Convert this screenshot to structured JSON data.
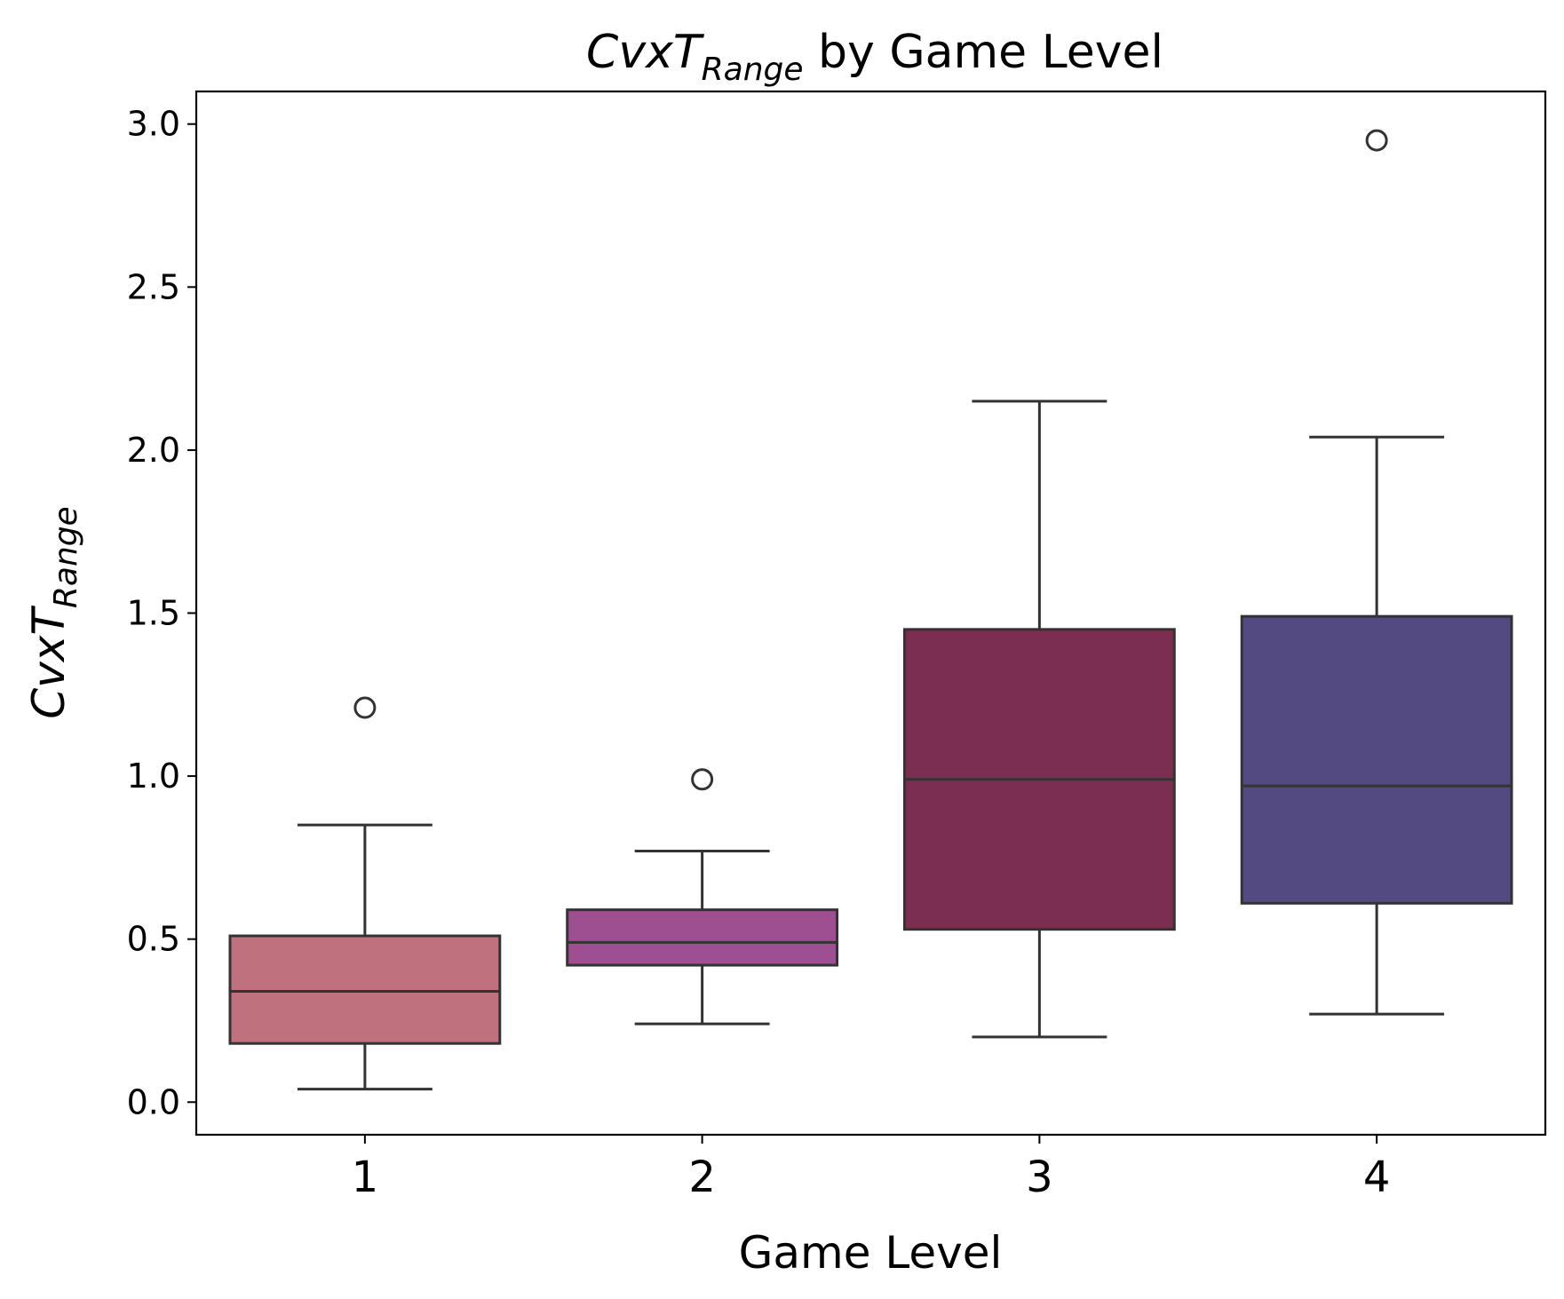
{
  "chart_data": {
    "type": "box",
    "title": {
      "base": "CvxT",
      "subscript": "Range",
      "suffix": " by Game Level"
    },
    "xlabel": "Game Level",
    "ylabel": {
      "base": "CvxT",
      "subscript": "Range"
    },
    "ylim": [
      -0.1,
      3.1
    ],
    "yticks": [
      0.0,
      0.5,
      1.0,
      1.5,
      2.0,
      2.5,
      3.0
    ],
    "ytick_labels": [
      "0.0",
      "0.5",
      "1.0",
      "1.5",
      "2.0",
      "2.5",
      "3.0"
    ],
    "categories": [
      "1",
      "2",
      "3",
      "4"
    ],
    "grid": false,
    "series": [
      {
        "category": "1",
        "color": "#bf717d",
        "whisker_low": 0.04,
        "q1": 0.18,
        "median": 0.34,
        "q3": 0.51,
        "whisker_high": 0.85,
        "outliers": [
          1.21
        ]
      },
      {
        "category": "2",
        "color": "#9e4f91",
        "whisker_low": 0.24,
        "q1": 0.42,
        "median": 0.49,
        "q3": 0.59,
        "whisker_high": 0.77,
        "outliers": [
          0.99
        ]
      },
      {
        "category": "3",
        "color": "#7c2e51",
        "whisker_low": 0.2,
        "q1": 0.53,
        "median": 0.99,
        "q3": 1.45,
        "whisker_high": 2.15,
        "outliers": []
      },
      {
        "category": "4",
        "color": "#524a80",
        "whisker_low": 0.27,
        "q1": 0.61,
        "median": 0.97,
        "q3": 1.49,
        "whisker_high": 2.04,
        "outliers": [
          2.95
        ]
      }
    ]
  }
}
